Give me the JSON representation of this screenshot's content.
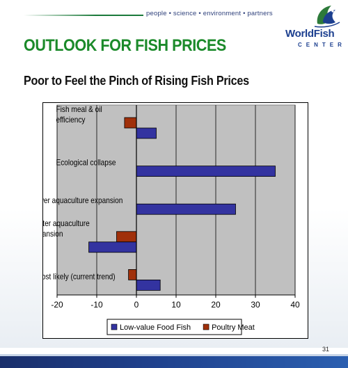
{
  "header": {
    "tagline": "people • science • environment • partners",
    "logo_word": "WorldFish",
    "logo_sub": "CENTER"
  },
  "slide": {
    "title": "OUTLOOK FOR FISH PRICES",
    "subtitle": "Poor to Feel the Pinch of Rising Fish Prices",
    "page_number": "31"
  },
  "colors": {
    "title_green": "#1b8a2a",
    "plot_bg": "#c0c0c0",
    "low_value_fish": "#3333a0",
    "poultry_meat": "#a0300a",
    "footer_blue": "#1f3f8a"
  },
  "chart_data": {
    "type": "bar",
    "orientation": "horizontal",
    "categories": [
      [
        "Fish meal & oil",
        "efficiency"
      ],
      [
        "Ecological collapse"
      ],
      [
        "Slower aquaculture expansion"
      ],
      [
        "Faster aquaculture",
        "expansion"
      ],
      [
        "Most likely (current trend)"
      ]
    ],
    "series": [
      {
        "name": "Low-value Food Fish",
        "color": "#3333a0",
        "values": [
          5,
          35,
          25,
          -12,
          6
        ]
      },
      {
        "name": "Poultry Meat",
        "color": "#a0300a",
        "values": [
          -3,
          0,
          0,
          -5,
          -2
        ]
      }
    ],
    "xlim": [
      -20,
      40
    ],
    "xticks": [
      "-20",
      "-10",
      "0",
      "10",
      "20",
      "30",
      "40"
    ],
    "grid": true,
    "legend_position": "bottom"
  }
}
